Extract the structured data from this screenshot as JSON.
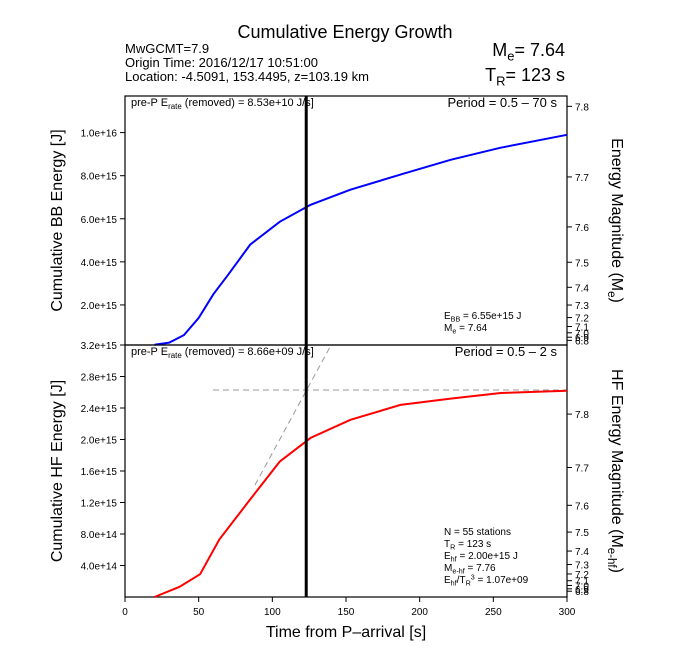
{
  "title": "Cumulative Energy Growth",
  "info": [
    "MwGCMT=7.9",
    "Origin Time: 2016/12/17 10:51:00",
    "Location: -4.5091, 153.4495, z=103.19 km"
  ],
  "summary": [
    [
      "M",
      {
        "sub": "e"
      },
      "= 7.64"
    ],
    [
      "T",
      {
        "sub": "R"
      },
      "= 123 s"
    ]
  ],
  "chart_data": [
    {
      "type": "line",
      "ylabel": "Cumulative BB Energy [J]",
      "y2label": [
        "Energy Magnitude (M",
        {
          "sub": "e"
        },
        ")"
      ],
      "xlim": [
        0,
        300
      ],
      "ylim": [
        140000000000000,
        11700000000000000
      ],
      "yticks": [
        {
          "value": 2000000000000000,
          "label": "2.0e+15"
        },
        {
          "value": 4000000000000000,
          "label": "4.0e+15"
        },
        {
          "value": 6000000000000000,
          "label": "6.0e+15"
        },
        {
          "value": 8000000000000000,
          "label": "8.0e+15"
        },
        {
          "value": 10000000000000000,
          "label": "1.0e+16"
        }
      ],
      "y2ticks": [
        7.8,
        7.7,
        7.6,
        7.5,
        7.4,
        7.3,
        7.2,
        7.1,
        {
          "value": 7,
          "label": "7.0"
        },
        6.9,
        6.8
      ],
      "vline": 123,
      "series": [
        {
          "color": "#0000ff",
          "x": [
            20,
            30,
            40,
            50,
            60,
            70,
            85,
            105,
            126,
            153,
            187,
            221,
            255,
            300
          ],
          "values": [
            150000000000000,
            250000000000000,
            600000000000000,
            1400000000000000,
            2500000000000000,
            3400000000000000,
            4800000000000000,
            5860000000000000,
            6650000000000000,
            7350000000000000,
            8050000000000000,
            8740000000000000,
            9300000000000000,
            9900000000000000
          ]
        }
      ],
      "annotations": {
        "note": [
          "pre-P E",
          {
            "sub": "rate"
          },
          " (removed) = 8.53e+10 J/s]"
        ],
        "period": "Period = 0.5 – 70 s",
        "stats": [
          [
            "E",
            {
              "sub": "BB"
            },
            " = 6.55e+15 J"
          ],
          [
            "M",
            {
              "sub": "e"
            },
            " = 7.64"
          ]
        ]
      }
    },
    {
      "type": "line",
      "ylabel": "Cumulative HF Energy [J]",
      "y2label": [
        "HF Energy Magnitude (M",
        {
          "sub": "e-hf"
        },
        ")"
      ],
      "xlabel": "Time from P–arrival [s]",
      "xlim": [
        0,
        300
      ],
      "xticks": [
        0,
        50,
        100,
        150,
        200,
        250,
        300
      ],
      "ylim": [
        0,
        3200000000000000
      ],
      "yticks": [
        {
          "value": 400000000000000,
          "label": "4.0e+14"
        },
        {
          "value": 800000000000000,
          "label": "8.0e+14"
        },
        {
          "value": 1200000000000000,
          "label": "1.2e+15"
        },
        {
          "value": 1600000000000000,
          "label": "1.6e+15"
        },
        {
          "value": 2000000000000000,
          "label": "2.0e+15"
        },
        {
          "value": 2400000000000000,
          "label": "2.4e+15"
        },
        {
          "value": 2800000000000000,
          "label": "2.8e+15"
        },
        {
          "value": 3200000000000000,
          "label": "3.2e+15"
        }
      ],
      "y2ticks": [
        7.8,
        7.7,
        7.6,
        7.5,
        7.4,
        7.3,
        7.2,
        7.1,
        {
          "value": 7,
          "label": "7.0"
        },
        6.9,
        6.8
      ],
      "vline": 123,
      "series": [
        {
          "color": "#ff0000",
          "x": [
            20,
            37,
            51,
            64,
            85,
            105,
            126,
            153,
            187,
            221,
            255,
            300
          ],
          "values": [
            0,
            130000000000000,
            290000000000000,
            730000000000000,
            1240000000000000,
            1720000000000000,
            2020000000000000,
            2250000000000000,
            2440000000000000,
            2520000000000000,
            2590000000000000,
            2620000000000000
          ]
        }
      ],
      "annotations": {
        "note": [
          "pre-P E",
          {
            "sub": "rate"
          },
          " (removed) = 8.66e+09 J/s]"
        ],
        "period": "Period = 0.5 – 2 s",
        "stats": [
          [
            "N = 55 stations"
          ],
          [
            "T",
            {
              "sub": "R"
            },
            " = 123  s"
          ],
          [
            "E",
            {
              "sub": "hf"
            },
            " = 2.00e+15 J"
          ],
          [
            "M",
            {
              "sub": "e-hf"
            },
            " = 7.76"
          ],
          [
            "E",
            {
              "sub": "hf"
            },
            "/T",
            {
              "sub": "R"
            },
            {
              "sup": "3"
            },
            " =  1.07e+09"
          ]
        ]
      }
    }
  ]
}
